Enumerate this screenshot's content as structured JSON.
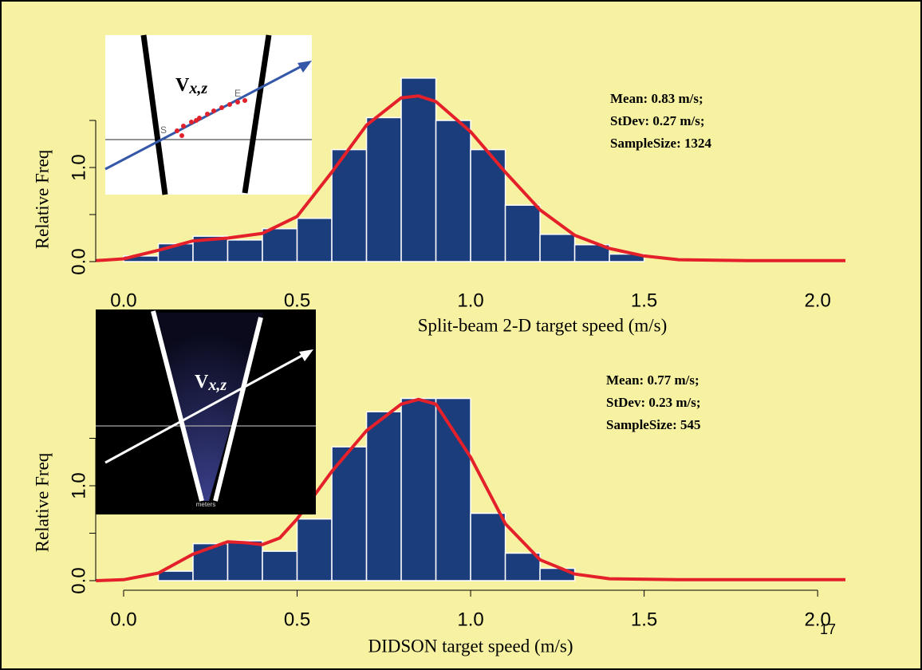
{
  "chart_data": [
    {
      "type": "histogram",
      "x_label": "Split-beam 2-D target speed (m/s)",
      "y_label": "Relative Freq",
      "bins": [
        0.0,
        0.1,
        0.2,
        0.3,
        0.4,
        0.5,
        0.6,
        0.7,
        0.8,
        0.9,
        1.0,
        1.1,
        1.2,
        1.3,
        1.4,
        1.5
      ],
      "values": [
        0.06,
        0.19,
        0.27,
        0.23,
        0.35,
        0.46,
        1.19,
        1.53,
        1.95,
        1.5,
        1.19,
        0.6,
        0.29,
        0.18,
        0.08
      ],
      "color": "#1c3d7c",
      "curve": {
        "color": "#e4202a",
        "x": [
          -0.08,
          0.0,
          0.1,
          0.2,
          0.3,
          0.4,
          0.5,
          0.6,
          0.7,
          0.8,
          0.85,
          0.9,
          1.0,
          1.1,
          1.2,
          1.3,
          1.4,
          1.5,
          1.6,
          1.8,
          2.0,
          2.08
        ],
        "y": [
          0.01,
          0.03,
          0.12,
          0.22,
          0.25,
          0.3,
          0.48,
          0.95,
          1.45,
          1.74,
          1.76,
          1.7,
          1.38,
          0.95,
          0.55,
          0.28,
          0.14,
          0.06,
          0.02,
          0.01,
          0.01,
          0.01
        ]
      },
      "xlim": [
        -0.085,
        2.087
      ],
      "ylim": [
        0,
        2
      ],
      "xticks": [
        {
          "value": 0,
          "label": "0.0"
        },
        {
          "value": 0.5,
          "label": "0.5"
        },
        {
          "value": 1,
          "label": "1.0"
        },
        {
          "value": 1.5,
          "label": "1.5"
        },
        {
          "value": 2,
          "label": "2.0"
        }
      ],
      "yticks": [
        {
          "value": 0,
          "label": "0.0"
        },
        {
          "value": 1,
          "label": "1.0"
        }
      ],
      "yminor_ticks": [
        0.5,
        1.5
      ],
      "x_axis_line": false,
      "annotations": [
        "Mean: 0.83 m/s;",
        "StDev: 0.27 m/s;",
        "SampleSize: 1324"
      ],
      "inset": {
        "label": "V",
        "label_sub": "x,z",
        "markers": [
          "S",
          "E"
        ]
      }
    },
    {
      "type": "histogram",
      "x_label": "DIDSON target speed (m/s)",
      "y_label": "Relative Freq",
      "bins": [
        0.1,
        0.2,
        0.3,
        0.4,
        0.5,
        0.6,
        0.7,
        0.8,
        0.9,
        1.0,
        1.1,
        1.2,
        1.3
      ],
      "values": [
        0.1,
        0.39,
        0.42,
        0.31,
        0.65,
        1.41,
        1.78,
        1.92,
        1.92,
        0.71,
        0.29,
        0.13
      ],
      "color": "#1c3d7c",
      "curve": {
        "color": "#e4202a",
        "x": [
          -0.08,
          0.0,
          0.1,
          0.2,
          0.3,
          0.35,
          0.4,
          0.45,
          0.5,
          0.6,
          0.7,
          0.8,
          0.85,
          0.9,
          1.0,
          1.1,
          1.2,
          1.3,
          1.4,
          1.6,
          2.08
        ],
        "y": [
          0.0,
          0.01,
          0.08,
          0.28,
          0.41,
          0.4,
          0.38,
          0.45,
          0.65,
          1.15,
          1.58,
          1.86,
          1.91,
          1.86,
          1.3,
          0.6,
          0.22,
          0.07,
          0.02,
          0.01,
          0.01
        ]
      },
      "xlim": [
        -0.085,
        2.087
      ],
      "ylim": [
        0,
        2
      ],
      "xticks": [
        {
          "value": 0,
          "label": "0.0"
        },
        {
          "value": 0.5,
          "label": "0.5"
        },
        {
          "value": 1,
          "label": "1.0"
        },
        {
          "value": 1.5,
          "label": "1.5"
        },
        {
          "value": 2,
          "label": "2.0"
        }
      ],
      "yticks": [
        {
          "value": 0,
          "label": "0.0"
        },
        {
          "value": 1,
          "label": "1.0"
        }
      ],
      "yminor_ticks": [
        0.5,
        1.5
      ],
      "x_axis_line": true,
      "annotations": [
        "Mean: 0.77 m/s;",
        "StDev: 0.23 m/s;",
        "SampleSize: 545"
      ],
      "inset": {
        "label": "V",
        "label_sub": "x,z",
        "unit": "meters"
      }
    }
  ],
  "slide_number": "17"
}
